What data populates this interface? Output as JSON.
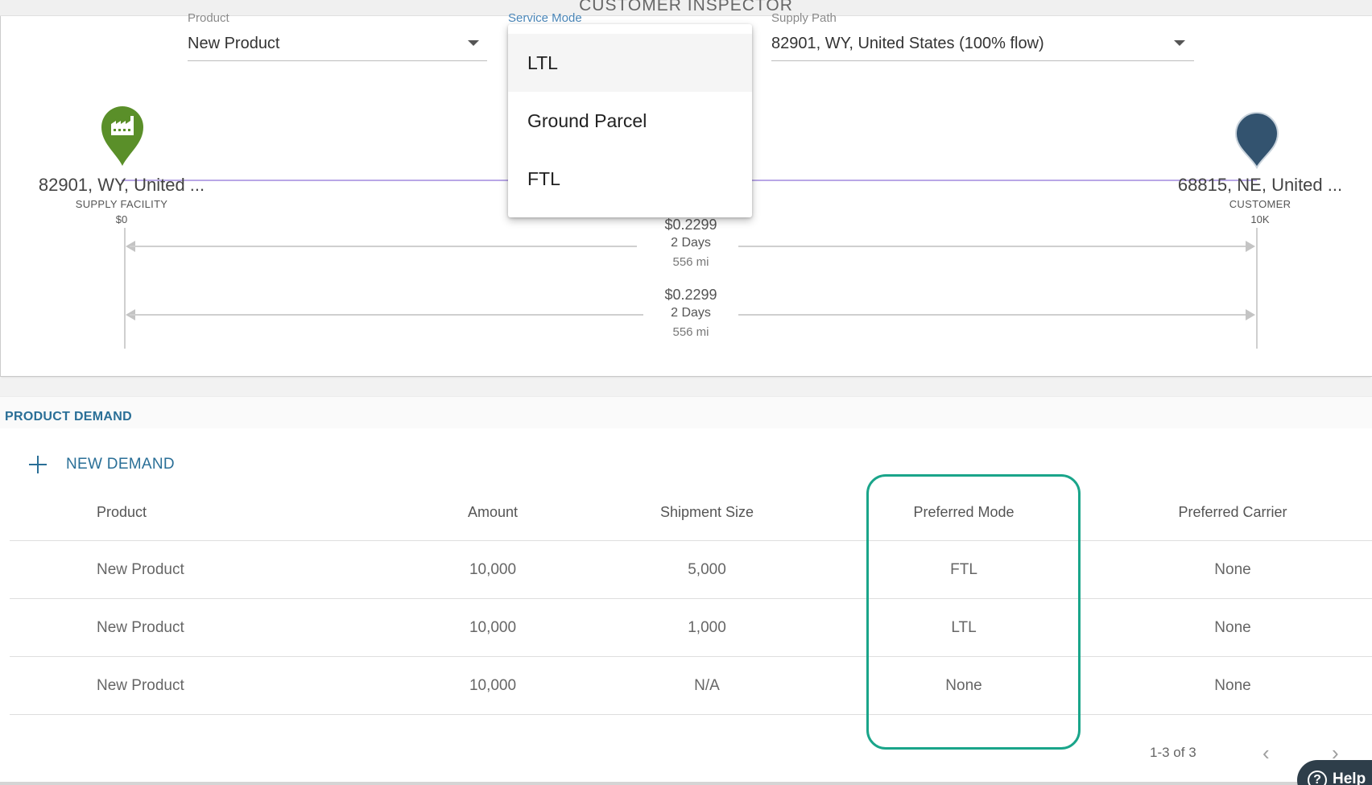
{
  "page": {
    "title": "CUSTOMER INSPECTOR"
  },
  "filters": {
    "product": {
      "label": "Product",
      "value": "New Product"
    },
    "service_mode": {
      "label": "Service Mode",
      "value": ""
    },
    "supply_path": {
      "label": "Supply Path",
      "value": "82901, WY, United States (100% flow)"
    }
  },
  "service_mode_dropdown": {
    "options": [
      "LTL",
      "Ground Parcel",
      "FTL"
    ],
    "selected": "LTL"
  },
  "route": {
    "origin": {
      "name": "82901, WY, United ...",
      "type": "SUPPLY FACILITY",
      "sub": "$0",
      "icon": "factory-pin-icon",
      "color": "#5a8f29"
    },
    "destination": {
      "name": "68815, NE, United ...",
      "type": "CUSTOMER",
      "sub": "10K",
      "icon": "location-pin-icon",
      "color": "#33536f"
    },
    "legs": [
      {
        "cost": "$0.2299",
        "days": "2 Days",
        "distance": "556 mi"
      },
      {
        "cost": "$0.2299",
        "days": "2 Days",
        "distance": "556 mi"
      }
    ]
  },
  "product_demand": {
    "title": "PRODUCT DEMAND",
    "new_button": "NEW DEMAND",
    "columns": [
      "Product",
      "Amount",
      "Shipment Size",
      "Preferred Mode",
      "Preferred Carrier"
    ],
    "rows": [
      [
        "New Product",
        "10,000",
        "5,000",
        "FTL",
        "None"
      ],
      [
        "New Product",
        "10,000",
        "1,000",
        "LTL",
        "None"
      ],
      [
        "New Product",
        "10,000",
        "N/A",
        "None",
        "None"
      ]
    ],
    "pagination": "1-3 of 3"
  },
  "help": {
    "label": "Help"
  },
  "colors": {
    "accent": "#2a6f97",
    "highlight": "#1aa58a",
    "route_line": "#b9a7e6"
  }
}
